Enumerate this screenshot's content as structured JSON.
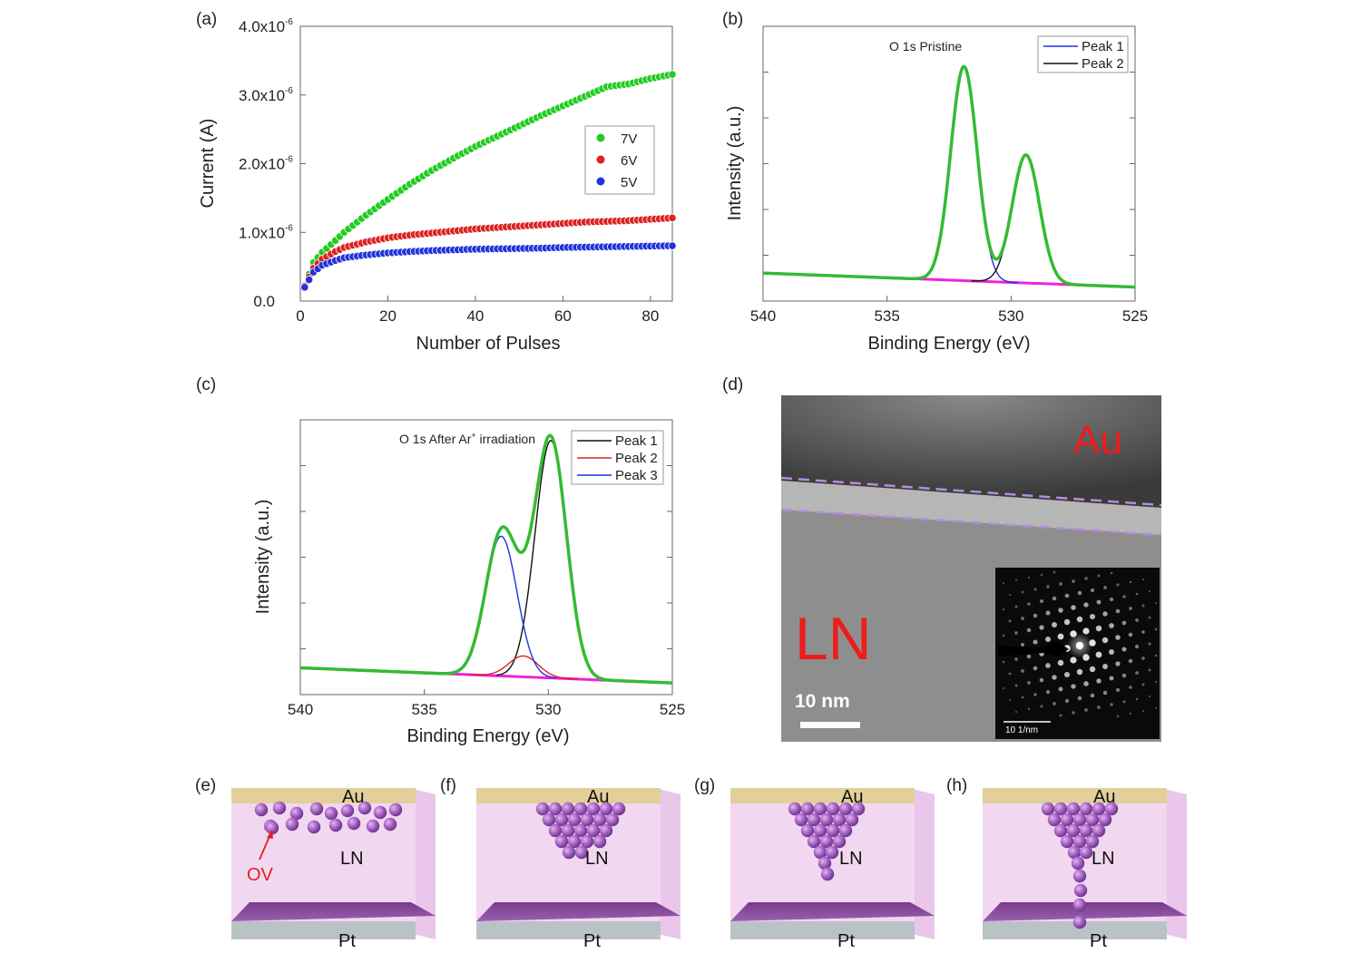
{
  "panels": {
    "a": "(a)",
    "b": "(b)",
    "c": "(c)",
    "d": "(d)",
    "e": "(e)",
    "f": "(f)",
    "g": "(g)",
    "h": "(h)"
  },
  "chart_data": [
    {
      "id": "a",
      "type": "scatter",
      "title": "",
      "xlabel": "Number of Pulses",
      "ylabel": "Current (A)",
      "xlim": [
        0,
        85
      ],
      "ylim": [
        0,
        4e-06
      ],
      "x_ticks": [
        0,
        20,
        40,
        60,
        80
      ],
      "x_tick_labels": [
        "0",
        "20",
        "40",
        "60",
        "80"
      ],
      "y_ticks": [
        0,
        1e-06,
        2e-06,
        3e-06,
        4e-06
      ],
      "y_tick_labels": [
        "0.0",
        "1.0x10",
        "2.0x10",
        "3.0x10",
        "4.0x10"
      ],
      "y_tick_exponents": [
        "",
        "-6",
        "-6",
        "-6",
        "-6"
      ],
      "legend_position": "center-right",
      "series": [
        {
          "name": "7V",
          "color": "#22cc22",
          "x": [
            1,
            3,
            5,
            8,
            10,
            15,
            20,
            25,
            30,
            35,
            40,
            45,
            50,
            55,
            60,
            65,
            70,
            75,
            80,
            85
          ],
          "y": [
            2.2e-07,
            5.6e-07,
            7.1e-07,
            8.8e-07,
            1e-06,
            1.25e-06,
            1.48e-06,
            1.7e-06,
            1.9e-06,
            2.08e-06,
            2.25e-06,
            2.4e-06,
            2.55e-06,
            2.7e-06,
            2.84e-06,
            2.98e-06,
            3.12e-06,
            3.16e-06,
            3.24e-06,
            3.3e-06
          ]
        },
        {
          "name": "6V",
          "color": "#dd2222",
          "x": [
            1,
            3,
            5,
            8,
            10,
            15,
            20,
            25,
            30,
            35,
            40,
            45,
            50,
            55,
            60,
            65,
            70,
            75,
            80,
            85
          ],
          "y": [
            2.2e-07,
            4.8e-07,
            6.1e-07,
            7.2e-07,
            7.8e-07,
            8.6e-07,
            9.2e-07,
            9.6e-07,
            9.9e-07,
            1.02e-06,
            1.05e-06,
            1.07e-06,
            1.09e-06,
            1.11e-06,
            1.13e-06,
            1.15e-06,
            1.16e-06,
            1.17e-06,
            1.19e-06,
            1.21e-06
          ]
        },
        {
          "name": "5V",
          "color": "#2233dd",
          "x": [
            1,
            3,
            5,
            8,
            10,
            15,
            20,
            25,
            30,
            35,
            40,
            45,
            50,
            55,
            60,
            65,
            70,
            75,
            80,
            85
          ],
          "y": [
            2e-07,
            4.2e-07,
            5.2e-07,
            5.9e-07,
            6.3e-07,
            6.7e-07,
            7e-07,
            7.2e-07,
            7.35e-07,
            7.45e-07,
            7.55e-07,
            7.6e-07,
            7.65e-07,
            7.7e-07,
            7.8e-07,
            7.85e-07,
            7.9e-07,
            7.95e-07,
            8e-07,
            8.05e-07
          ]
        }
      ]
    },
    {
      "id": "b",
      "type": "line",
      "title": "O 1s  Pristine",
      "xlabel": "Binding Energy (eV)",
      "ylabel": "Intensity (a.u.)",
      "xlim": [
        540,
        525
      ],
      "x_ticks": [
        540,
        535,
        530,
        525
      ],
      "x_tick_labels": [
        "540",
        "535",
        "530",
        "525"
      ],
      "legend_position": "top-right",
      "background": {
        "x_start": 540,
        "y_start": 0.04,
        "x_end": 525,
        "y_end": -0.02
      },
      "peaks": [
        {
          "name": "Peak 1",
          "color": "#2233dd",
          "center": 531.9,
          "fwhm": 1.25,
          "height": 0.92
        },
        {
          "name": "Peak 2",
          "color": "#111111",
          "center": 529.4,
          "fwhm": 1.3,
          "height": 0.55
        }
      ],
      "envelope_color": "#33bb33",
      "background_color": "#ee22dd",
      "legend": [
        {
          "name": "Peak 1",
          "color": "#2233dd"
        },
        {
          "name": "Peak 2",
          "color": "#111111"
        }
      ]
    },
    {
      "id": "c",
      "type": "line",
      "title": "O 1s  After Ar",
      "title_sup": "+",
      "title_end": " irradiation",
      "xlabel": "Binding Energy (eV)",
      "ylabel": "Intensity (a.u.)",
      "xlim": [
        540,
        525
      ],
      "x_ticks": [
        540,
        535,
        530,
        525
      ],
      "x_tick_labels": [
        "540",
        "535",
        "530",
        "525"
      ],
      "legend_position": "top-right",
      "background": {
        "x_start": 540,
        "y_start": 0.035,
        "x_end": 525,
        "y_end": -0.03
      },
      "peaks": [
        {
          "name": "Peak 1",
          "color": "#111111",
          "center": 529.9,
          "fwhm": 1.5,
          "height": 1.02
        },
        {
          "name": "Peak 2",
          "color": "#dd2222",
          "center": 531.0,
          "fwhm": 1.4,
          "height": 0.09
        },
        {
          "name": "Peak 3",
          "color": "#2233dd",
          "center": 531.9,
          "fwhm": 1.5,
          "height": 0.6
        }
      ],
      "envelope_color": "#33bb33",
      "background_color": "#ee22dd",
      "legend": [
        {
          "name": "Peak 1",
          "color": "#111111"
        },
        {
          "name": "Peak 2",
          "color": "#dd2222"
        },
        {
          "name": "Peak 3",
          "color": "#2233dd"
        }
      ]
    }
  ],
  "tem": {
    "top_layer": "Au",
    "bottom_layer": "LN",
    "scale_bar": "10 nm",
    "inset_scale": "10  1/nm"
  },
  "schematics": [
    {
      "panel": "e",
      "top": "Au",
      "middle": "LN",
      "bottom": "Pt",
      "annotation": "OV"
    },
    {
      "panel": "f",
      "top": "Au",
      "middle": "LN",
      "bottom": "Pt"
    },
    {
      "panel": "g",
      "top": "Au",
      "middle": "LN",
      "bottom": "Pt"
    },
    {
      "panel": "h",
      "top": "Au",
      "middle": "LN",
      "bottom": "Pt"
    }
  ],
  "colors": {
    "au_layer": "#e2cf9a",
    "pt_layer": "#b9c3c6",
    "ln_body": "#f2d7f0",
    "vacancy": "#9a5fb4",
    "annotation": "#e02020"
  }
}
